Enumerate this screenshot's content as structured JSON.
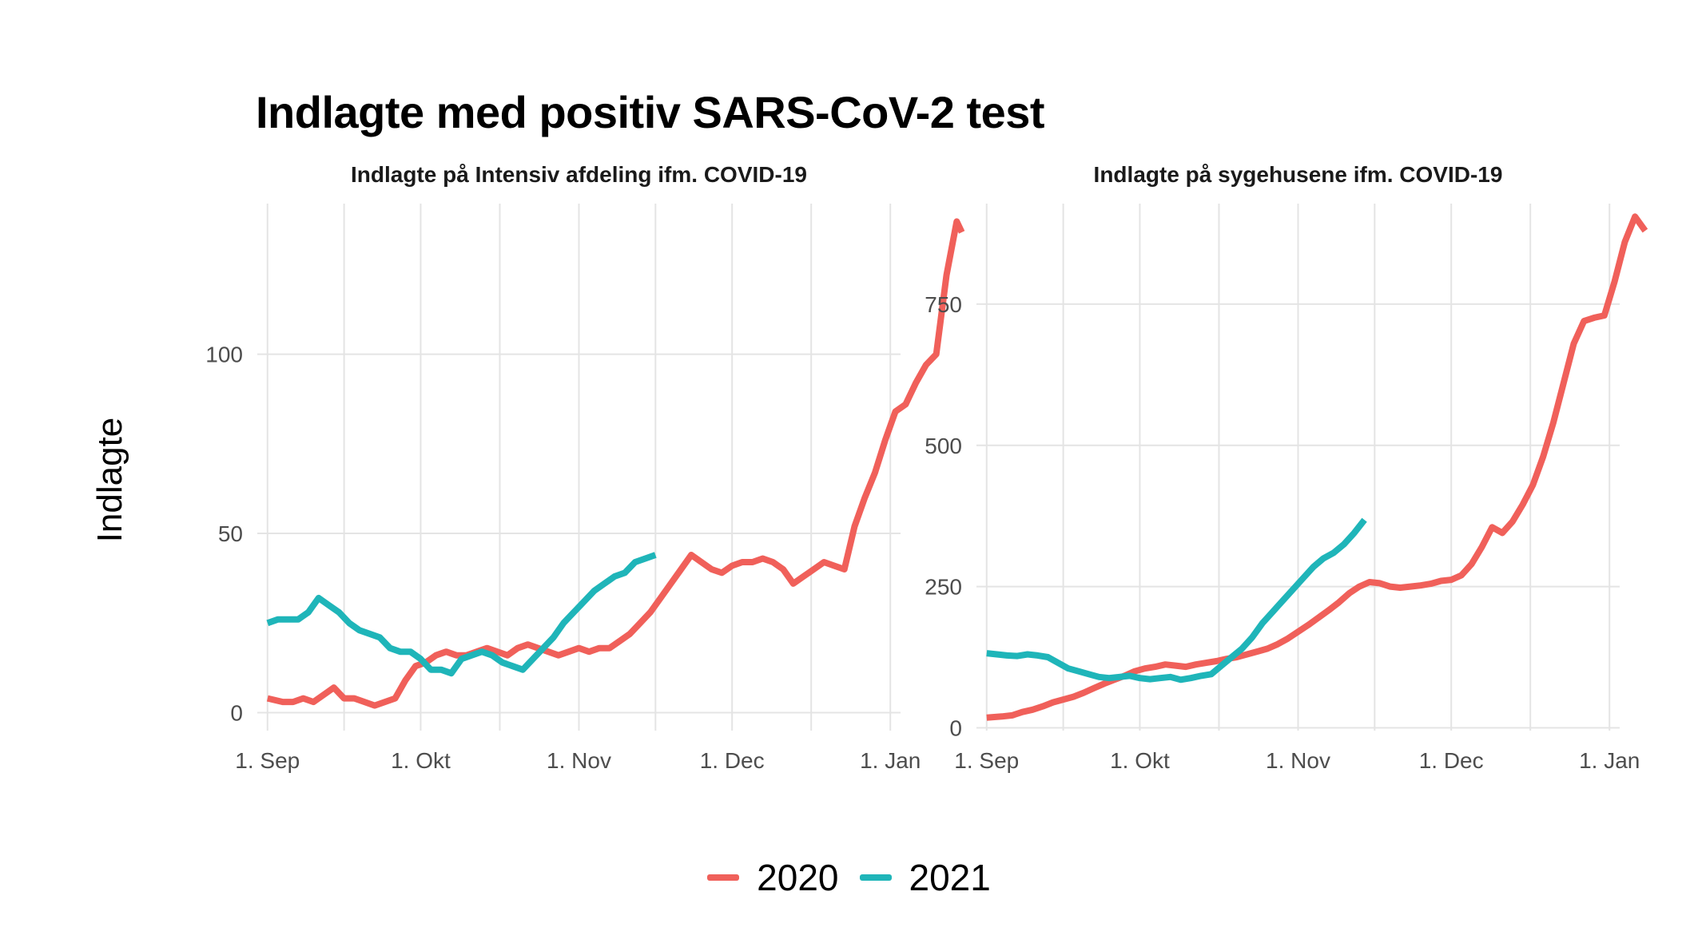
{
  "title": "Indlagte med positiv SARS-CoV-2 test",
  "ylabel": "Indlagte",
  "colors": {
    "2020": "#F0605A",
    "2021": "#1FB5B9",
    "grid": "#E4E4E4"
  },
  "chart_data": [
    {
      "type": "line",
      "title": "Indlagte på Intensiv afdeling ifm. COVID-19",
      "x_axis": "days since 1. Sep",
      "xlim": [
        -2,
        124
      ],
      "ylim": [
        -5,
        142
      ],
      "x_ticks": [
        0,
        30,
        61,
        91,
        122
      ],
      "x_tick_labels": [
        "1. Sep",
        "1. Okt",
        "1. Nov",
        "1. Dec",
        "1. Jan"
      ],
      "y_ticks": [
        0,
        50,
        100
      ],
      "y_tick_labels": [
        "0",
        "50",
        "100"
      ],
      "series": [
        {
          "name": "2020",
          "color": "#F0605A",
          "points": [
            [
              0,
              4
            ],
            [
              3,
              3
            ],
            [
              5,
              3
            ],
            [
              7,
              4
            ],
            [
              9,
              3
            ],
            [
              11,
              5
            ],
            [
              13,
              7
            ],
            [
              15,
              4
            ],
            [
              17,
              4
            ],
            [
              19,
              3
            ],
            [
              21,
              2
            ],
            [
              23,
              3
            ],
            [
              25,
              4
            ],
            [
              27,
              9
            ],
            [
              29,
              13
            ],
            [
              31,
              14
            ],
            [
              33,
              16
            ],
            [
              35,
              17
            ],
            [
              37,
              16
            ],
            [
              39,
              16
            ],
            [
              41,
              17
            ],
            [
              43,
              18
            ],
            [
              45,
              17
            ],
            [
              47,
              16
            ],
            [
              49,
              18
            ],
            [
              51,
              19
            ],
            [
              53,
              18
            ],
            [
              55,
              17
            ],
            [
              57,
              16
            ],
            [
              59,
              17
            ],
            [
              61,
              18
            ],
            [
              63,
              17
            ],
            [
              65,
              18
            ],
            [
              67,
              18
            ],
            [
              69,
              20
            ],
            [
              71,
              22
            ],
            [
              73,
              25
            ],
            [
              75,
              28
            ],
            [
              77,
              32
            ],
            [
              79,
              36
            ],
            [
              81,
              40
            ],
            [
              83,
              44
            ],
            [
              85,
              42
            ],
            [
              87,
              40
            ],
            [
              89,
              39
            ],
            [
              91,
              41
            ],
            [
              93,
              42
            ],
            [
              95,
              42
            ],
            [
              97,
              43
            ],
            [
              99,
              42
            ],
            [
              101,
              40
            ],
            [
              103,
              36
            ],
            [
              105,
              38
            ],
            [
              107,
              40
            ],
            [
              109,
              42
            ],
            [
              111,
              41
            ],
            [
              113,
              40
            ],
            [
              115,
              52
            ],
            [
              117,
              60
            ],
            [
              119,
              67
            ],
            [
              121,
              76
            ],
            [
              123,
              84
            ],
            [
              125,
              86
            ],
            [
              127,
              92
            ],
            [
              129,
              97
            ],
            [
              131,
              100
            ],
            [
              133,
              122
            ],
            [
              135,
              137
            ],
            [
              136,
              134
            ]
          ]
        },
        {
          "name": "2021",
          "color": "#1FB5B9",
          "points": [
            [
              0,
              25
            ],
            [
              2,
              26
            ],
            [
              4,
              26
            ],
            [
              6,
              26
            ],
            [
              8,
              28
            ],
            [
              10,
              32
            ],
            [
              12,
              30
            ],
            [
              14,
              28
            ],
            [
              16,
              25
            ],
            [
              18,
              23
            ],
            [
              20,
              22
            ],
            [
              22,
              21
            ],
            [
              24,
              18
            ],
            [
              26,
              17
            ],
            [
              28,
              17
            ],
            [
              30,
              15
            ],
            [
              32,
              12
            ],
            [
              34,
              12
            ],
            [
              36,
              11
            ],
            [
              38,
              15
            ],
            [
              40,
              16
            ],
            [
              42,
              17
            ],
            [
              44,
              16
            ],
            [
              46,
              14
            ],
            [
              48,
              13
            ],
            [
              50,
              12
            ],
            [
              52,
              15
            ],
            [
              54,
              18
            ],
            [
              56,
              21
            ],
            [
              58,
              25
            ],
            [
              60,
              28
            ],
            [
              62,
              31
            ],
            [
              64,
              34
            ],
            [
              66,
              36
            ],
            [
              68,
              38
            ],
            [
              70,
              39
            ],
            [
              72,
              42
            ],
            [
              74,
              43
            ],
            [
              76,
              44
            ]
          ]
        }
      ]
    },
    {
      "type": "line",
      "title": "Indlagte på sygehusene ifm. COVID-19",
      "x_axis": "days since 1. Sep",
      "xlim": [
        -2,
        124
      ],
      "ylim": [
        -5,
        928
      ],
      "x_ticks": [
        0,
        30,
        61,
        91,
        122
      ],
      "x_tick_labels": [
        "1. Sep",
        "1. Okt",
        "1. Nov",
        "1. Dec",
        "1. Jan"
      ],
      "y_ticks": [
        0,
        250,
        500,
        750
      ],
      "y_tick_labels": [
        "0",
        "250",
        "500",
        "750"
      ],
      "series": [
        {
          "name": "2020",
          "color": "#F0605A",
          "points": [
            [
              0,
              18
            ],
            [
              3,
              20
            ],
            [
              5,
              22
            ],
            [
              7,
              28
            ],
            [
              9,
              32
            ],
            [
              11,
              38
            ],
            [
              13,
              45
            ],
            [
              15,
              50
            ],
            [
              17,
              55
            ],
            [
              19,
              62
            ],
            [
              21,
              70
            ],
            [
              23,
              78
            ],
            [
              25,
              85
            ],
            [
              27,
              92
            ],
            [
              29,
              100
            ],
            [
              31,
              105
            ],
            [
              33,
              108
            ],
            [
              35,
              112
            ],
            [
              37,
              110
            ],
            [
              39,
              108
            ],
            [
              41,
              112
            ],
            [
              43,
              115
            ],
            [
              45,
              118
            ],
            [
              47,
              122
            ],
            [
              49,
              125
            ],
            [
              51,
              130
            ],
            [
              53,
              135
            ],
            [
              55,
              140
            ],
            [
              57,
              148
            ],
            [
              59,
              158
            ],
            [
              61,
              170
            ],
            [
              63,
              182
            ],
            [
              65,
              195
            ],
            [
              67,
              208
            ],
            [
              69,
              222
            ],
            [
              71,
              238
            ],
            [
              73,
              250
            ],
            [
              75,
              258
            ],
            [
              77,
              256
            ],
            [
              79,
              250
            ],
            [
              81,
              248
            ],
            [
              83,
              250
            ],
            [
              85,
              252
            ],
            [
              87,
              255
            ],
            [
              89,
              260
            ],
            [
              91,
              262
            ],
            [
              93,
              270
            ],
            [
              95,
              290
            ],
            [
              97,
              320
            ],
            [
              99,
              355
            ],
            [
              101,
              345
            ],
            [
              103,
              365
            ],
            [
              105,
              395
            ],
            [
              107,
              430
            ],
            [
              109,
              480
            ],
            [
              111,
              540
            ],
            [
              113,
              610
            ],
            [
              115,
              680
            ],
            [
              117,
              720
            ],
            [
              119,
              726
            ],
            [
              121,
              730
            ],
            [
              123,
              790
            ],
            [
              125,
              860
            ],
            [
              127,
              905
            ],
            [
              129,
              880
            ]
          ]
        },
        {
          "name": "2021",
          "color": "#1FB5B9",
          "points": [
            [
              0,
              132
            ],
            [
              2,
              130
            ],
            [
              4,
              128
            ],
            [
              6,
              127
            ],
            [
              8,
              130
            ],
            [
              10,
              128
            ],
            [
              12,
              125
            ],
            [
              14,
              115
            ],
            [
              16,
              105
            ],
            [
              18,
              100
            ],
            [
              20,
              95
            ],
            [
              22,
              90
            ],
            [
              24,
              88
            ],
            [
              26,
              90
            ],
            [
              28,
              92
            ],
            [
              30,
              88
            ],
            [
              32,
              86
            ],
            [
              34,
              88
            ],
            [
              36,
              90
            ],
            [
              38,
              85
            ],
            [
              40,
              88
            ],
            [
              42,
              92
            ],
            [
              44,
              95
            ],
            [
              46,
              110
            ],
            [
              48,
              125
            ],
            [
              50,
              140
            ],
            [
              52,
              160
            ],
            [
              54,
              185
            ],
            [
              56,
              205
            ],
            [
              58,
              225
            ],
            [
              60,
              245
            ],
            [
              62,
              265
            ],
            [
              64,
              285
            ],
            [
              66,
              300
            ],
            [
              68,
              310
            ],
            [
              70,
              325
            ],
            [
              72,
              345
            ],
            [
              74,
              368
            ]
          ]
        }
      ]
    }
  ],
  "legend": {
    "items": [
      {
        "label": "2020",
        "color": "#F0605A"
      },
      {
        "label": "2021",
        "color": "#1FB5B9"
      }
    ]
  }
}
